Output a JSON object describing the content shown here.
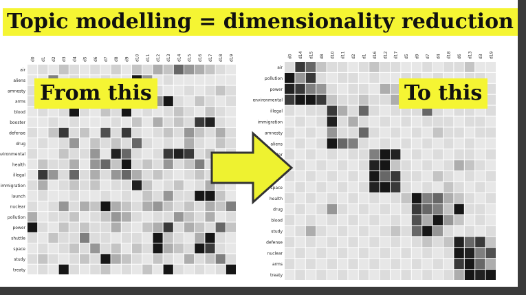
{
  "title": "Topic modelling = dimensionality reduction",
  "from_label": "From this",
  "to_label": "To this",
  "colors": {
    "highlight": "#f5f533",
    "arrow_fill": "#eef230",
    "arrow_stroke": "#333333",
    "frame": "#3a3a3a"
  },
  "left_matrix": {
    "columns": [
      "d0",
      "d1",
      "d2",
      "d3",
      "d4",
      "d5",
      "d6",
      "d7",
      "d8",
      "d9",
      "d10",
      "d11",
      "d12",
      "d13",
      "d14",
      "d15",
      "d16",
      "d17",
      "d18",
      "d19"
    ],
    "rows": [
      "air",
      "aliens",
      "amnesty",
      "arms",
      "blood",
      "booster",
      "defense",
      "drug",
      "environmental",
      "health",
      "illegal",
      "immigration",
      "launch",
      "nuclear",
      "pollution",
      "power",
      "shuttle",
      "space",
      "study",
      "treaty"
    ],
    "values": [
      [
        0.05,
        0.1,
        0.05,
        0.2,
        0.1,
        0.05,
        0.1,
        0.05,
        0.15,
        0.05,
        0.2,
        0.1,
        0.3,
        0.2,
        0.6,
        0.4,
        0.3,
        0.2,
        0.1,
        0.05
      ],
      [
        0.05,
        0.05,
        0.5,
        0.05,
        0.1,
        0.05,
        0.05,
        0.1,
        0.05,
        0.05,
        0.95,
        0.4,
        0.05,
        0.1,
        0.05,
        0.05,
        0.05,
        0.05,
        0.05,
        0.05
      ],
      [
        0.1,
        0.05,
        0.05,
        0.1,
        0.05,
        0.2,
        0.05,
        0.1,
        0.2,
        0.1,
        0.3,
        0.05,
        0.1,
        0.05,
        0.05,
        0.1,
        0.05,
        0.1,
        0.2,
        0.1
      ],
      [
        0.1,
        0.2,
        0.1,
        0.3,
        0.1,
        0.05,
        0.2,
        0.1,
        0.05,
        0.3,
        0.05,
        0.1,
        0.4,
        0.95,
        0.1,
        0.05,
        0.2,
        0.1,
        0.05,
        0.1
      ],
      [
        0.05,
        0.1,
        0.05,
        0.1,
        0.95,
        0.1,
        0.05,
        0.2,
        0.1,
        0.95,
        0.05,
        0.1,
        0.05,
        0.1,
        0.2,
        0.1,
        0.05,
        0.2,
        0.1,
        0.05
      ],
      [
        0.05,
        0.05,
        0.1,
        0.05,
        0.1,
        0.05,
        0.05,
        0.05,
        0.1,
        0.05,
        0.2,
        0.05,
        0.3,
        0.1,
        0.2,
        0.1,
        0.8,
        0.9,
        0.1,
        0.05
      ],
      [
        0.1,
        0.05,
        0.2,
        0.8,
        0.1,
        0.2,
        0.05,
        0.7,
        0.1,
        0.8,
        0.1,
        0.05,
        0.1,
        0.2,
        0.1,
        0.4,
        0.2,
        0.1,
        0.3,
        0.1
      ],
      [
        0.05,
        0.1,
        0.05,
        0.1,
        0.4,
        0.05,
        0.2,
        0.1,
        0.2,
        0.1,
        0.6,
        0.1,
        0.05,
        0.1,
        0.05,
        0.3,
        0.1,
        0.05,
        0.2,
        0.1
      ],
      [
        0.1,
        0.05,
        0.05,
        0.2,
        0.1,
        0.1,
        0.4,
        0.05,
        0.9,
        0.6,
        0.1,
        0.05,
        0.1,
        0.8,
        0.9,
        0.8,
        0.1,
        0.2,
        0.05,
        0.1
      ],
      [
        0.05,
        0.2,
        0.1,
        0.1,
        0.3,
        0.05,
        0.4,
        0.6,
        0.2,
        0.95,
        0.1,
        0.2,
        0.1,
        0.4,
        0.1,
        0.2,
        0.5,
        0.1,
        0.4,
        0.2
      ],
      [
        0.05,
        0.8,
        0.4,
        0.1,
        0.6,
        0.1,
        0.3,
        0.1,
        0.4,
        0.6,
        0.3,
        0.1,
        0.2,
        0.1,
        0.05,
        0.1,
        0.2,
        0.1,
        0.1,
        0.05
      ],
      [
        0.1,
        0.3,
        0.05,
        0.1,
        0.2,
        0.1,
        0.2,
        0.05,
        0.1,
        0.1,
        0.9,
        0.2,
        0.05,
        0.1,
        0.2,
        0.05,
        0.1,
        0.3,
        0.1,
        0.05
      ],
      [
        0.05,
        0.1,
        0.05,
        0.05,
        0.1,
        0.05,
        0.05,
        0.1,
        0.05,
        0.1,
        0.05,
        0.2,
        0.1,
        0.4,
        0.1,
        0.1,
        0.95,
        0.95,
        0.2,
        0.05
      ],
      [
        0.1,
        0.05,
        0.1,
        0.4,
        0.1,
        0.3,
        0.2,
        0.95,
        0.3,
        0.2,
        0.1,
        0.3,
        0.4,
        0.2,
        0.1,
        0.2,
        0.1,
        0.3,
        0.2,
        0.5
      ],
      [
        0.3,
        0.05,
        0.1,
        0.1,
        0.2,
        0.05,
        0.1,
        0.2,
        0.4,
        0.3,
        0.1,
        0.05,
        0.1,
        0.1,
        0.4,
        0.2,
        0.1,
        0.3,
        0.05,
        0.1
      ],
      [
        0.95,
        0.1,
        0.05,
        0.2,
        0.1,
        0.2,
        0.1,
        0.1,
        0.3,
        0.1,
        0.05,
        0.2,
        0.3,
        0.8,
        0.1,
        0.3,
        0.2,
        0.1,
        0.6,
        0.2
      ],
      [
        0.1,
        0.05,
        0.2,
        0.1,
        0.1,
        0.5,
        0.1,
        0.1,
        0.05,
        0.1,
        0.1,
        0.05,
        0.95,
        0.2,
        0.1,
        0.05,
        0.3,
        0.95,
        0.1,
        0.05
      ],
      [
        0.05,
        0.1,
        0.05,
        0.1,
        0.2,
        0.1,
        0.4,
        0.1,
        0.2,
        0.05,
        0.2,
        0.1,
        0.95,
        0.3,
        0.2,
        0.1,
        0.95,
        0.8,
        0.1,
        0.05
      ],
      [
        0.1,
        0.2,
        0.1,
        0.05,
        0.1,
        0.2,
        0.1,
        0.95,
        0.3,
        0.2,
        0.1,
        0.05,
        0.2,
        0.1,
        0.05,
        0.3,
        0.1,
        0.2,
        0.5,
        0.1
      ],
      [
        0.05,
        0.1,
        0.05,
        0.95,
        0.1,
        0.05,
        0.1,
        0.2,
        0.05,
        0.1,
        0.05,
        0.2,
        0.05,
        0.95,
        0.1,
        0.05,
        0.1,
        0.05,
        0.1,
        0.95
      ]
    ]
  },
  "right_matrix": {
    "columns": [
      "d0",
      "d14",
      "d15",
      "d8",
      "d10",
      "d11",
      "d2",
      "d1",
      "d16",
      "d12",
      "d17",
      "d5",
      "d9",
      "d7",
      "d4",
      "d18",
      "d6",
      "d13",
      "d3",
      "d19"
    ],
    "rows": [
      "air",
      "pollution",
      "power",
      "environmental",
      "illegal",
      "immigration",
      "amnesty",
      "aliens",
      "booster",
      "launch",
      "shuttle",
      "space",
      "health",
      "drug",
      "blood",
      "study",
      "defense",
      "nuclear",
      "arms",
      "treaty"
    ],
    "values": [
      [
        0.1,
        0.8,
        0.6,
        0.2,
        0.1,
        0.1,
        0.05,
        0.1,
        0.2,
        0.1,
        0.1,
        0.05,
        0.05,
        0.1,
        0.05,
        0.1,
        0.1,
        0.2,
        0.05,
        0.05
      ],
      [
        0.95,
        0.4,
        0.8,
        0.1,
        0.05,
        0.1,
        0.1,
        0.05,
        0.1,
        0.05,
        0.05,
        0.1,
        0.1,
        0.05,
        0.1,
        0.05,
        0.05,
        0.1,
        0.1,
        0.05
      ],
      [
        0.9,
        0.8,
        0.5,
        0.4,
        0.1,
        0.05,
        0.1,
        0.1,
        0.05,
        0.3,
        0.2,
        0.1,
        0.1,
        0.2,
        0.1,
        0.05,
        0.1,
        0.3,
        0.05,
        0.1
      ],
      [
        0.8,
        0.95,
        0.95,
        0.8,
        0.2,
        0.1,
        0.1,
        0.2,
        0.1,
        0.1,
        0.3,
        0.1,
        0.2,
        0.1,
        0.1,
        0.2,
        0.1,
        0.1,
        0.2,
        0.1
      ],
      [
        0.1,
        0.05,
        0.1,
        0.1,
        0.8,
        0.3,
        0.1,
        0.6,
        0.1,
        0.05,
        0.1,
        0.1,
        0.1,
        0.6,
        0.1,
        0.05,
        0.1,
        0.1,
        0.05,
        0.1
      ],
      [
        0.05,
        0.1,
        0.05,
        0.1,
        0.9,
        0.1,
        0.3,
        0.1,
        0.05,
        0.1,
        0.05,
        0.1,
        0.05,
        0.1,
        0.1,
        0.1,
        0.05,
        0.1,
        0.1,
        0.05
      ],
      [
        0.1,
        0.05,
        0.1,
        0.05,
        0.4,
        0.1,
        0.1,
        0.6,
        0.1,
        0.05,
        0.1,
        0.05,
        0.1,
        0.05,
        0.2,
        0.1,
        0.1,
        0.05,
        0.1,
        0.1
      ],
      [
        0.05,
        0.1,
        0.05,
        0.1,
        0.95,
        0.6,
        0.5,
        0.1,
        0.05,
        0.1,
        0.05,
        0.1,
        0.05,
        0.1,
        0.05,
        0.1,
        0.05,
        0.1,
        0.05,
        0.05
      ],
      [
        0.1,
        0.05,
        0.1,
        0.05,
        0.1,
        0.05,
        0.1,
        0.1,
        0.5,
        0.95,
        0.9,
        0.05,
        0.1,
        0.05,
        0.1,
        0.05,
        0.1,
        0.1,
        0.05,
        0.1
      ],
      [
        0.05,
        0.1,
        0.05,
        0.1,
        0.05,
        0.1,
        0.05,
        0.1,
        0.9,
        0.95,
        0.2,
        0.1,
        0.05,
        0.1,
        0.05,
        0.1,
        0.3,
        0.2,
        0.1,
        0.05
      ],
      [
        0.1,
        0.05,
        0.1,
        0.05,
        0.1,
        0.05,
        0.1,
        0.05,
        0.95,
        0.6,
        0.8,
        0.1,
        0.1,
        0.05,
        0.2,
        0.1,
        0.05,
        0.1,
        0.05,
        0.1
      ],
      [
        0.05,
        0.1,
        0.05,
        0.1,
        0.05,
        0.1,
        0.05,
        0.1,
        0.9,
        0.95,
        0.8,
        0.1,
        0.05,
        0.1,
        0.05,
        0.2,
        0.1,
        0.05,
        0.1,
        0.05
      ],
      [
        0.1,
        0.05,
        0.1,
        0.05,
        0.1,
        0.05,
        0.1,
        0.05,
        0.1,
        0.05,
        0.1,
        0.2,
        0.95,
        0.5,
        0.6,
        0.3,
        0.2,
        0.1,
        0.05,
        0.1
      ],
      [
        0.05,
        0.1,
        0.05,
        0.1,
        0.4,
        0.1,
        0.05,
        0.1,
        0.05,
        0.1,
        0.05,
        0.1,
        0.8,
        0.6,
        0.5,
        0.2,
        0.95,
        0.1,
        0.1,
        0.05
      ],
      [
        0.1,
        0.05,
        0.1,
        0.05,
        0.1,
        0.05,
        0.1,
        0.05,
        0.1,
        0.05,
        0.1,
        0.05,
        0.7,
        0.3,
        0.95,
        0.4,
        0.2,
        0.05,
        0.1,
        0.05
      ],
      [
        0.05,
        0.1,
        0.3,
        0.1,
        0.05,
        0.1,
        0.05,
        0.1,
        0.05,
        0.1,
        0.2,
        0.1,
        0.6,
        0.95,
        0.4,
        0.1,
        0.05,
        0.1,
        0.05,
        0.1
      ],
      [
        0.1,
        0.05,
        0.1,
        0.05,
        0.1,
        0.05,
        0.1,
        0.05,
        0.1,
        0.05,
        0.1,
        0.05,
        0.1,
        0.2,
        0.1,
        0.2,
        0.9,
        0.6,
        0.8,
        0.2
      ],
      [
        0.05,
        0.1,
        0.05,
        0.1,
        0.05,
        0.1,
        0.05,
        0.1,
        0.05,
        0.1,
        0.05,
        0.1,
        0.05,
        0.1,
        0.05,
        0.1,
        0.95,
        0.9,
        0.5,
        0.7
      ],
      [
        0.1,
        0.05,
        0.1,
        0.05,
        0.1,
        0.05,
        0.1,
        0.05,
        0.1,
        0.05,
        0.1,
        0.05,
        0.1,
        0.05,
        0.1,
        0.05,
        0.8,
        0.95,
        0.6,
        0.3
      ],
      [
        0.05,
        0.1,
        0.05,
        0.1,
        0.05,
        0.1,
        0.05,
        0.1,
        0.05,
        0.1,
        0.05,
        0.1,
        0.05,
        0.1,
        0.05,
        0.1,
        0.3,
        0.95,
        0.9,
        0.95
      ]
    ]
  }
}
